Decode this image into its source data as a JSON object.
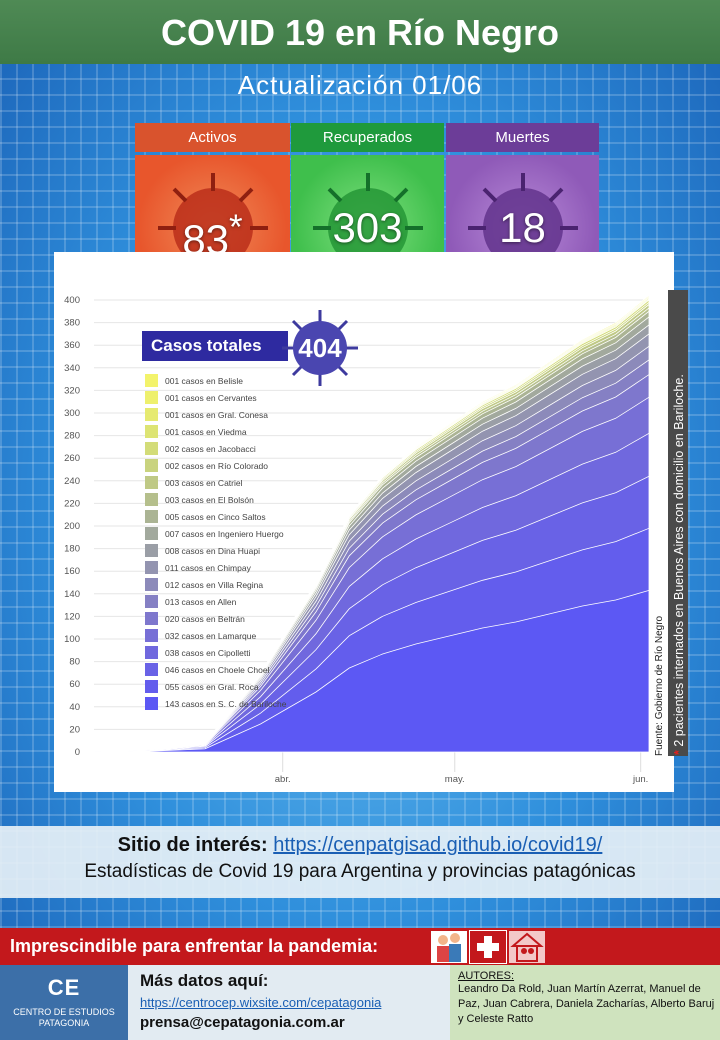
{
  "header": {
    "title": "COVID 19 en Río Negro",
    "subtitle": "Actualización  01/06"
  },
  "stats": [
    {
      "label": "Activos",
      "value": "83",
      "marker": "*",
      "color": "#e8562c",
      "head_color": "#d9532d"
    },
    {
      "label": "Recuperados",
      "value": "303",
      "color": "#3fbf4c",
      "head_color": "#1f9a3c"
    },
    {
      "label": "Muertes",
      "value": "18",
      "color": "#8f5ab8",
      "head_color": "#6c3d98"
    }
  ],
  "totals": {
    "label": "Casos totales",
    "value": "404"
  },
  "chart_data": {
    "type": "area",
    "title": "",
    "xlabel": "",
    "ylabel": "",
    "ylim": [
      0,
      400
    ],
    "yticks": [
      0,
      20,
      40,
      60,
      80,
      100,
      120,
      140,
      160,
      180,
      200,
      220,
      240,
      260,
      280,
      300,
      320,
      340,
      360,
      380,
      400
    ],
    "xticks": [
      "abr.",
      "may.",
      "jun."
    ],
    "x_days": [
      0,
      10,
      20,
      30,
      40,
      46,
      52,
      58,
      64,
      70,
      76,
      82,
      88,
      94,
      100
    ],
    "total": [
      0,
      2,
      8,
      70,
      150,
      210,
      245,
      270,
      290,
      310,
      325,
      345,
      365,
      380,
      404
    ],
    "series": [
      {
        "name": "001 casos en Belisle",
        "value": 1,
        "color": "#f3f36b"
      },
      {
        "name": "001 casos en Cervantes",
        "value": 1,
        "color": "#eef06d"
      },
      {
        "name": "001 casos en Gral. Conesa",
        "value": 1,
        "color": "#e6ea70"
      },
      {
        "name": "001 casos en Viedma",
        "value": 1,
        "color": "#dde473"
      },
      {
        "name": "002 casos en Jacobacci",
        "value": 2,
        "color": "#d3dc78"
      },
      {
        "name": "002 casos en Río Colorado",
        "value": 2,
        "color": "#c9d37e"
      },
      {
        "name": "003 casos en Catriel",
        "value": 3,
        "color": "#bfc985"
      },
      {
        "name": "003 casos en El Bolsón",
        "value": 3,
        "color": "#b5bf8c"
      },
      {
        "name": "005 casos en Cinco Saltos",
        "value": 5,
        "color": "#abb494"
      },
      {
        "name": "007 casos en Ingeniero Huergo",
        "value": 7,
        "color": "#a2a99d"
      },
      {
        "name": "008 casos en Dina Huapi",
        "value": 8,
        "color": "#9a9ea6"
      },
      {
        "name": "011 casos en Chimpay",
        "value": 11,
        "color": "#9394b0"
      },
      {
        "name": "012 casos en Villa Regina",
        "value": 12,
        "color": "#8c8aba"
      },
      {
        "name": "013 casos en Allen",
        "value": 13,
        "color": "#8580c4"
      },
      {
        "name": "020 casos en Beltrán",
        "value": 20,
        "color": "#7e77cd"
      },
      {
        "name": "032 casos en Lamarque",
        "value": 32,
        "color": "#776fd6"
      },
      {
        "name": "038 casos en Cipolletti",
        "value": 38,
        "color": "#7068de"
      },
      {
        "name": "046 casos en Choele Choel",
        "value": 46,
        "color": "#6962e6"
      },
      {
        "name": "055 casos en Gral. Roca",
        "value": 55,
        "color": "#635ded"
      },
      {
        "name": "143 casos en S. C. de Bariloche",
        "value": 143,
        "color": "#5c58f4"
      }
    ]
  },
  "source": "Fuente: Gobierno de Río Negro",
  "note": {
    "marker": "*",
    "text": " 2 pacientes internados en Buenos Aires con domicilio en Bariloche."
  },
  "sites": {
    "label": "Sitio de interés:",
    "url": "https://cenpatgisad.github.io/covid19/",
    "description": "Estadísticas de Covid 19 para Argentina y provincias patagónicas"
  },
  "banner": {
    "text": "Imprescindible para enfrentar la pandemia:"
  },
  "footer": {
    "logo_mark": "CE",
    "logo_text": "CENTRO DE ESTUDIOS PATAGONIA",
    "more_label": "Más datos aquí:",
    "more_url": "https://centrocep.wixsite.com/cepatagonia",
    "email": "prensa@cepatagonia.com.ar",
    "authors_label": "AUTORES:",
    "authors": "Leandro Da Rold, Juan Martín Azerrat, Manuel de Paz, Juan Cabrera, Daniela Zacharías, Alberto Baruj y Celeste Ratto"
  }
}
